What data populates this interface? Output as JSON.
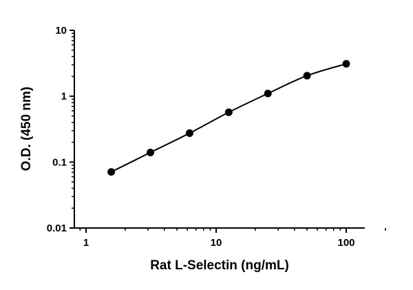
{
  "chart_data": {
    "type": "scatter",
    "title": "",
    "xlabel": "Rat L-Selectin (ng/mL)",
    "ylabel": "O.D. (450 nm)",
    "x_scale": "log",
    "y_scale": "log",
    "xlim": [
      0.8,
      200
    ],
    "ylim": [
      0.01,
      10
    ],
    "x_ticks": [
      {
        "value": 1,
        "label": "1"
      },
      {
        "value": 10,
        "label": "10"
      },
      {
        "value": 100,
        "label": "100"
      }
    ],
    "y_ticks": [
      {
        "value": 0.01,
        "label": "0.01"
      },
      {
        "value": 0.1,
        "label": "0.1"
      },
      {
        "value": 1,
        "label": "1"
      },
      {
        "value": 10,
        "label": "10"
      }
    ],
    "grid": false,
    "legend": "none",
    "fit_curve": true,
    "series": [
      {
        "x": [
          1.5625,
          3.125,
          6.25,
          12.5,
          25,
          50,
          100
        ],
        "values": [
          0.071,
          0.14,
          0.275,
          0.57,
          1.1,
          2.05,
          3.1
        ]
      }
    ],
    "colors": {
      "marker": "#000000",
      "line": "#000000"
    }
  }
}
